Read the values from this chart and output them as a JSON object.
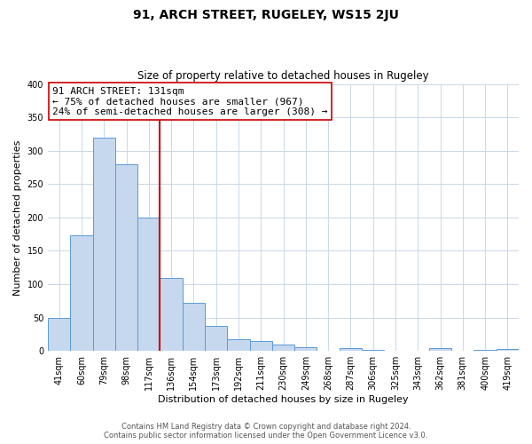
{
  "title": "91, ARCH STREET, RUGELEY, WS15 2JU",
  "subtitle": "Size of property relative to detached houses in Rugeley",
  "xlabel": "Distribution of detached houses by size in Rugeley",
  "ylabel": "Number of detached properties",
  "bar_labels": [
    "41sqm",
    "60sqm",
    "79sqm",
    "98sqm",
    "117sqm",
    "136sqm",
    "154sqm",
    "173sqm",
    "192sqm",
    "211sqm",
    "230sqm",
    "249sqm",
    "268sqm",
    "287sqm",
    "306sqm",
    "325sqm",
    "343sqm",
    "362sqm",
    "381sqm",
    "400sqm",
    "419sqm"
  ],
  "bar_values": [
    50,
    173,
    320,
    280,
    200,
    110,
    72,
    38,
    17,
    15,
    10,
    6,
    0,
    4,
    2,
    0,
    0,
    4,
    0,
    2,
    3
  ],
  "bar_color": "#c5d8ee",
  "bar_edge_color": "#5b9bd5",
  "vline_x": 4.5,
  "vline_color": "#cc0000",
  "annotation_text": "91 ARCH STREET: 131sqm\n← 75% of detached houses are smaller (967)\n24% of semi-detached houses are larger (308) →",
  "annotation_box_color": "#ffffff",
  "annotation_box_edge": "#cc0000",
  "ylim": [
    0,
    400
  ],
  "yticks": [
    0,
    50,
    100,
    150,
    200,
    250,
    300,
    350,
    400
  ],
  "footer_line1": "Contains HM Land Registry data © Crown copyright and database right 2024.",
  "footer_line2": "Contains public sector information licensed under the Open Government Licence v3.0.",
  "background_color": "#ffffff",
  "grid_color": "#c8d8e8",
  "title_fontsize": 10,
  "subtitle_fontsize": 8.5,
  "xlabel_fontsize": 8,
  "ylabel_fontsize": 8,
  "tick_fontsize": 7,
  "footer_fontsize": 6,
  "annot_fontsize": 8
}
